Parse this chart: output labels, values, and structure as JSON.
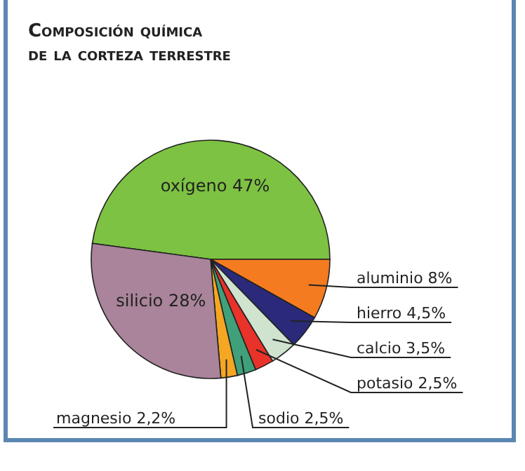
{
  "chart_data": {
    "type": "pie",
    "title": "Composición química de la corteza terrestre",
    "categories": [
      "oxígeno",
      "aluminio",
      "hierro",
      "calcio",
      "potasio",
      "sodio",
      "magnesio",
      "silicio"
    ],
    "values": [
      47,
      8,
      4.5,
      3.5,
      2.5,
      2.5,
      2.2,
      28
    ],
    "value_labels": [
      "47%",
      "8%",
      "4,5%",
      "3,5%",
      "2,5%",
      "2,5%",
      "2,2%",
      "28%"
    ],
    "colors": [
      "#7dc242",
      "#f47b20",
      "#2b2a7a",
      "#cfe3cf",
      "#e8322a",
      "#3fa07a",
      "#f5a623",
      "#a9849a"
    ]
  }
}
